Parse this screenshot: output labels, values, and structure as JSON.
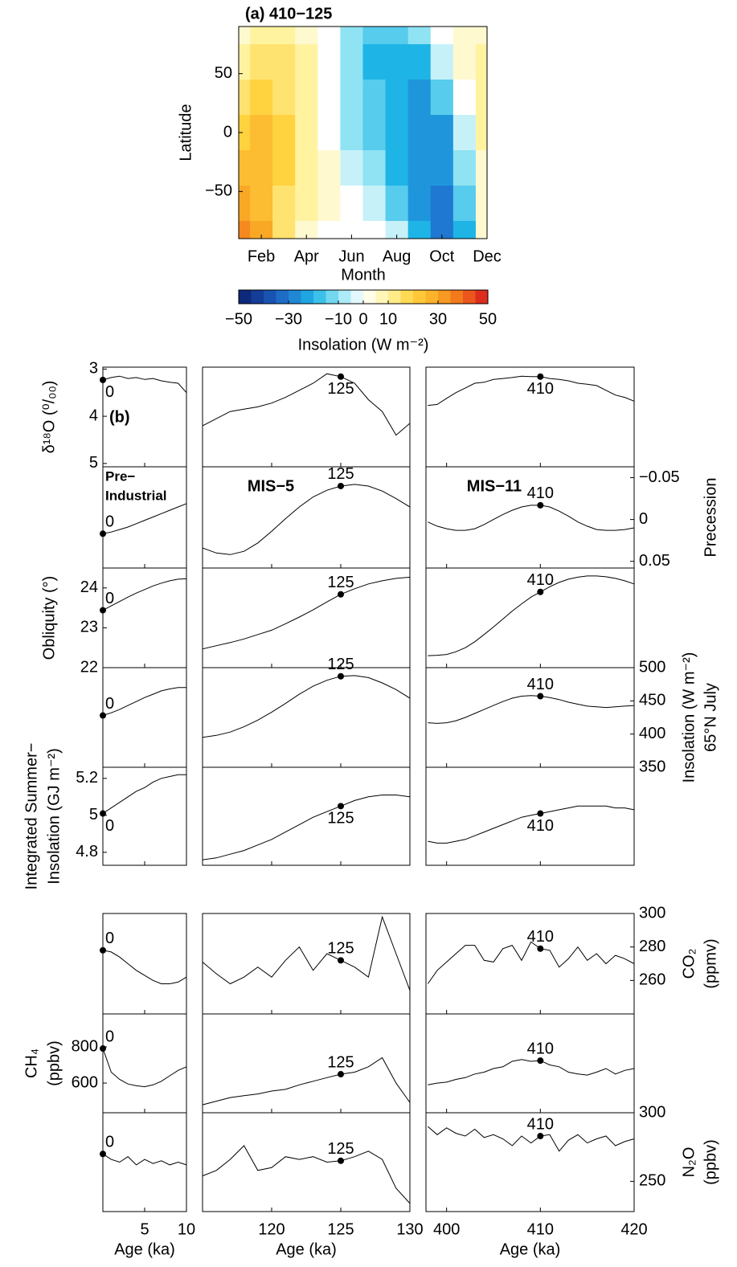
{
  "chart_data": [
    {
      "type": "heatmap",
      "title": "(a) 410−125",
      "ylabel": "Latitude",
      "xlabel": "Month",
      "x": [
        1,
        2,
        3,
        4,
        5,
        6,
        7,
        8,
        9,
        10,
        11,
        12
      ],
      "y": [
        90,
        60,
        30,
        0,
        -30,
        -60,
        -90
      ],
      "values": [
        [
          5,
          10,
          10,
          5,
          0,
          -10,
          -15,
          -15,
          -10,
          0,
          5,
          5
        ],
        [
          10,
          15,
          15,
          10,
          0,
          -10,
          -20,
          -20,
          -20,
          -5,
          5,
          10
        ],
        [
          15,
          20,
          15,
          10,
          0,
          -10,
          -15,
          -20,
          -25,
          -15,
          0,
          10
        ],
        [
          20,
          25,
          20,
          10,
          0,
          -10,
          -15,
          -20,
          -25,
          -25,
          -5,
          10
        ],
        [
          25,
          25,
          20,
          10,
          5,
          -5,
          -10,
          -20,
          -25,
          -25,
          -10,
          5
        ],
        [
          30,
          25,
          15,
          10,
          5,
          0,
          -5,
          -15,
          -25,
          -30,
          -15,
          5
        ],
        [
          35,
          30,
          15,
          5,
          0,
          0,
          0,
          -5,
          -20,
          -30,
          -20,
          5
        ]
      ],
      "xlim": [
        1,
        12
      ],
      "xticks": [
        {
          "value": 2,
          "label": "Feb"
        },
        {
          "value": 4,
          "label": "Apr"
        },
        {
          "value": 6,
          "label": "Jun"
        },
        {
          "value": 8,
          "label": "Aug"
        },
        {
          "value": 10,
          "label": "Oct"
        },
        {
          "value": 12,
          "label": "Dec"
        }
      ],
      "ylim": [
        -90,
        90
      ],
      "yticks": [
        {
          "value": -50,
          "label": "−50"
        },
        0,
        50
      ],
      "colormap": [
        "#0a1f6e",
        "#1747a6",
        "#1f78d1",
        "#1fb4e6",
        "#8fe3f3",
        "#ffffff",
        "#fff3a0",
        "#ffd23f",
        "#f9a825",
        "#f06a1a",
        "#d7191c"
      ],
      "colorbar": {
        "label": "Insolation (W m⁻²)",
        "lim": [
          -50,
          50
        ],
        "ticks": [
          {
            "value": -50,
            "label": "−50"
          },
          {
            "value": -30,
            "label": "−30"
          },
          {
            "value": -10,
            "label": "−10"
          },
          0,
          10,
          30,
          50
        ]
      }
    },
    {
      "type": "line",
      "panel_label": "(b)",
      "color": "#000000",
      "columns": [
        {
          "annotation": [
            "Pre−",
            "Industrial"
          ],
          "xlabel": "Age (ka)",
          "marker_x": 0,
          "xlim": [
            0,
            10
          ],
          "xticks": [
            5,
            10
          ],
          "x": [
            0,
            1,
            2,
            3,
            4,
            5,
            6,
            7,
            8,
            9,
            10
          ]
        },
        {
          "annotation": [
            "MIS−5"
          ],
          "xlabel": "Age (ka)",
          "marker_x": 125,
          "xlim": [
            115,
            130
          ],
          "xticks": [
            120,
            125,
            130
          ],
          "x": [
            115,
            116,
            117,
            118,
            119,
            120,
            121,
            122,
            123,
            124,
            125,
            126,
            127,
            128,
            129,
            130
          ]
        },
        {
          "annotation": [
            "MIS−11"
          ],
          "xlabel": "Age (ka)",
          "marker_x": 410,
          "xlim": [
            397.8,
            420
          ],
          "xticks": [
            400,
            410,
            420
          ],
          "x": [
            398,
            399,
            400,
            401,
            402,
            403,
            404,
            405,
            406,
            407,
            408,
            409,
            410,
            411,
            412,
            413,
            414,
            415,
            416,
            417,
            418,
            419,
            420
          ]
        }
      ],
      "rows": [
        {
          "ylabel": [
            "δ¹⁸O (⁰/₀₀)"
          ],
          "axis": "left",
          "ylim": [
            5.07,
            2.96
          ],
          "yticks": [
            3,
            4,
            5
          ],
          "series": [
            [
              3.23,
              3.18,
              3.15,
              3.2,
              3.18,
              3.22,
              3.2,
              3.25,
              3.28,
              3.3,
              3.5
            ],
            [
              4.2,
              4.05,
              3.9,
              3.85,
              3.8,
              3.72,
              3.6,
              3.45,
              3.3,
              3.1,
              3.16,
              3.3,
              3.65,
              3.9,
              4.4,
              4.15
            ],
            [
              3.77,
              3.75,
              3.62,
              3.5,
              3.4,
              3.3,
              3.28,
              3.22,
              3.2,
              3.18,
              3.15,
              3.16,
              3.16,
              3.2,
              3.22,
              3.25,
              3.3,
              3.32,
              3.35,
              3.45,
              3.55,
              3.6,
              3.68
            ]
          ]
        },
        {
          "ylabel": [
            "Precession"
          ],
          "axis": "right",
          "ylim": [
            0.058,
            -0.063
          ],
          "yticks": [
            {
              "value": -0.05,
              "label": "−0.05"
            },
            0,
            0.05
          ],
          "series": [
            [
              0.017,
              0.015,
              0.012,
              0.009,
              0.005,
              0.001,
              -0.003,
              -0.007,
              -0.011,
              -0.015,
              -0.019
            ],
            [
              0.034,
              0.04,
              0.042,
              0.038,
              0.028,
              0.014,
              -0.001,
              -0.015,
              -0.027,
              -0.035,
              -0.04,
              -0.042,
              -0.04,
              -0.034,
              -0.025,
              -0.015
            ],
            [
              0.003,
              0.008,
              0.011,
              0.013,
              0.013,
              0.011,
              0.006,
              0.0,
              -0.006,
              -0.011,
              -0.015,
              -0.017,
              -0.017,
              -0.015,
              -0.01,
              -0.004,
              0.003,
              0.008,
              0.012,
              0.013,
              0.013,
              0.012,
              0.01
            ]
          ]
        },
        {
          "ylabel": [
            "Obliquity (°)"
          ],
          "axis": "left",
          "ylim": [
            22,
            24.5
          ],
          "yticks": [
            22,
            23,
            24
          ],
          "series": [
            [
              23.44,
              23.55,
              23.66,
              23.77,
              23.87,
              23.96,
              24.05,
              24.12,
              24.18,
              24.22,
              24.23
            ],
            [
              22.47,
              22.55,
              22.63,
              22.72,
              22.83,
              22.94,
              23.1,
              23.27,
              23.45,
              23.65,
              23.84,
              23.98,
              24.1,
              24.18,
              24.24,
              24.27
            ],
            [
              22.3,
              22.31,
              22.33,
              22.4,
              22.5,
              22.65,
              22.83,
              23.02,
              23.22,
              23.42,
              23.6,
              23.77,
              23.9,
              24.03,
              24.14,
              24.22,
              24.27,
              24.3,
              24.3,
              24.28,
              24.24,
              24.18,
              24.1
            ]
          ]
        },
        {
          "ylabel": [
            "Insolation (W m⁻²)",
            "65°N July"
          ],
          "axis": "right",
          "ylim": [
            350,
            500
          ],
          "yticks": [
            350,
            400,
            450,
            500
          ],
          "series": [
            [
              428,
              432,
              437,
              443,
              449,
              455,
              460,
              465,
              468,
              470,
              470
            ],
            [
              395,
              398,
              403,
              411,
              421,
              433,
              446,
              460,
              472,
              481,
              487,
              488,
              485,
              477,
              467,
              454
            ],
            [
              417,
              416,
              417,
              420,
              425,
              431,
              437,
              443,
              449,
              454,
              457,
              458,
              457,
              455,
              452,
              448,
              445,
              442,
              441,
              440,
              441,
              442,
              443
            ]
          ]
        },
        {
          "ylabel": [
            "Integrated Summer−",
            "Insolation (GJ m⁻²)"
          ],
          "axis": "left",
          "ylim": [
            4.73,
            5.26
          ],
          "yticks": [
            4.8,
            5,
            5.2
          ],
          "series": [
            [
              5.01,
              5.04,
              5.07,
              5.1,
              5.13,
              5.15,
              5.18,
              5.2,
              5.21,
              5.22,
              5.22
            ],
            [
              4.76,
              4.77,
              4.79,
              4.81,
              4.84,
              4.87,
              4.91,
              4.95,
              4.99,
              5.02,
              5.05,
              5.08,
              5.1,
              5.11,
              5.11,
              5.1
            ],
            [
              4.86,
              4.85,
              4.85,
              4.86,
              4.87,
              4.89,
              4.91,
              4.93,
              4.95,
              4.97,
              4.99,
              5.0,
              5.01,
              5.02,
              5.03,
              5.04,
              5.05,
              5.05,
              5.05,
              5.05,
              5.04,
              5.04,
              5.03
            ]
          ]
        },
        {
          "ylabel": [
            "CO₂",
            "(ppmv)"
          ],
          "axis": "right",
          "ylim": [
            240,
            300
          ],
          "yticks": [
            260,
            280,
            300
          ],
          "series": [
            [
              278,
              277,
              274,
              270,
              266,
              263,
              260,
              258,
              258,
              259,
              262
            ],
            [
              271,
              264,
              258,
              262,
              268,
              262,
              272,
              280,
              266,
              276,
              272,
              268,
              262,
              298,
              276,
              254
            ],
            [
              258,
              266,
              271,
              276,
              281,
              281,
              272,
              271,
              279,
              281,
              272,
              283,
              279,
              278,
              268,
              273,
              280,
              272,
              276,
              270,
              275,
              273,
              270
            ]
          ]
        },
        {
          "ylabel": [
            "CH₄",
            "(ppbv)"
          ],
          "axis": "left",
          "ylim": [
            436,
            982
          ],
          "yticks": [
            600,
            800
          ],
          "series": [
            [
              791,
              660,
              620,
              595,
              585,
              580,
              590,
              610,
              640,
              670,
              690
            ],
            [
              480,
              500,
              520,
              530,
              540,
              556,
              565,
              590,
              610,
              630,
              649,
              660,
              690,
              740,
              600,
              493
            ],
            [
              590,
              600,
              605,
              620,
              630,
              650,
              660,
              680,
              690,
              720,
              730,
              720,
              724,
              700,
              690,
              660,
              650,
              644,
              660,
              680,
              650,
              670,
              680
            ]
          ]
        },
        {
          "ylabel": [
            "N₂O",
            "(ppbv)"
          ],
          "axis": "right",
          "ylim": [
            228,
            300
          ],
          "yticks": [
            250,
            300
          ],
          "series": [
            [
              270,
              266,
              264,
              268,
              262,
              266,
              263,
              265,
              262,
              264,
              262
            ],
            [
              254,
              258,
              266,
              276,
              258,
              260,
              268,
              266,
              268,
              264,
              265,
              268,
              272,
              266,
              245,
              234
            ],
            [
              290,
              284,
              289,
              285,
              283,
              288,
              282,
              284,
              281,
              276,
              283,
              278,
              283,
              284,
              272,
              280,
              284,
              278,
              281,
              283,
              276,
              279,
              281
            ]
          ]
        }
      ]
    }
  ]
}
